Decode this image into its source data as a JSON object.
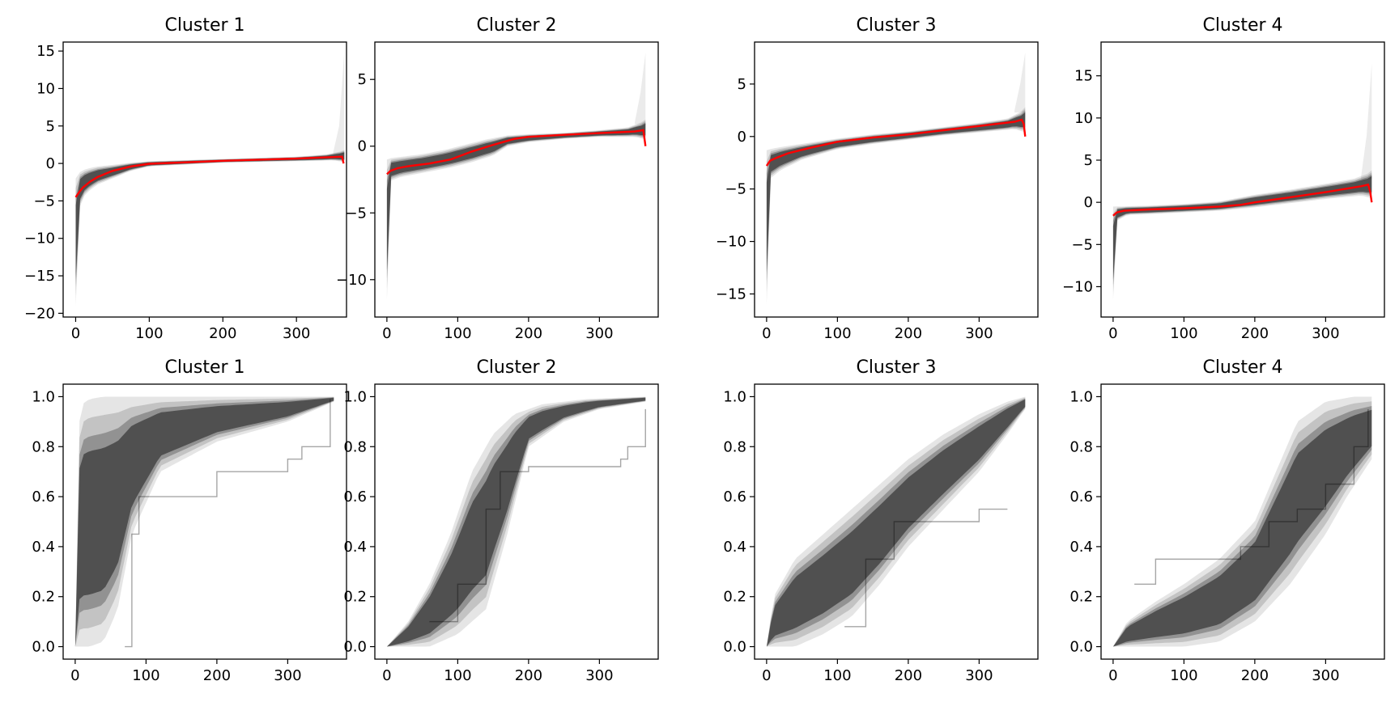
{
  "figure": {
    "colors": {
      "band": "#000000",
      "mean": "#ff0000",
      "axis": "#000000",
      "background": "#ffffff"
    }
  },
  "chart_data": [
    {
      "type": "line",
      "title": "Cluster 1",
      "xlabel": "",
      "ylabel": "",
      "xlim": [
        -17,
        368
      ],
      "ylim": [
        -20.5,
        16.2
      ],
      "xticks": [
        0,
        100,
        200,
        300
      ],
      "yticks": [
        -20,
        -15,
        -10,
        -5,
        0,
        5,
        10,
        15
      ],
      "ytick_labels": [
        "−20",
        "−15",
        "−10",
        "−5",
        "0",
        "5",
        10,
        15
      ],
      "grid": false,
      "series": [
        {
          "role": "mean",
          "color": "#ff0000",
          "x": [
            0,
            5,
            10,
            20,
            30,
            50,
            75,
            100,
            150,
            200,
            250,
            300,
            350,
            362,
            364
          ],
          "y": [
            -4.5,
            -3.8,
            -3.2,
            -2.4,
            -1.8,
            -1.0,
            -0.4,
            -0.05,
            0.15,
            0.35,
            0.5,
            0.65,
            0.85,
            0.9,
            0.0
          ]
        },
        {
          "role": "band-upper",
          "x": [
            0,
            5,
            10,
            20,
            30,
            50,
            75,
            100,
            200,
            300,
            340,
            360,
            365
          ],
          "y": [
            -2.0,
            -1.2,
            -0.9,
            -0.6,
            -0.4,
            -0.2,
            0.1,
            0.3,
            0.6,
            0.9,
            1.2,
            1.6,
            1.8
          ]
        },
        {
          "role": "band-lower",
          "x": [
            0,
            2,
            5,
            10,
            20,
            30,
            50,
            75,
            100,
            200,
            300,
            350,
            365
          ],
          "y": [
            -19.0,
            -10.0,
            -6.0,
            -4.5,
            -3.5,
            -2.8,
            -2.0,
            -1.0,
            -0.4,
            0.1,
            0.3,
            0.4,
            0.2
          ]
        },
        {
          "role": "tail-upper",
          "x": [
            350,
            358,
            365
          ],
          "y": [
            1.5,
            5.0,
            15.0
          ]
        }
      ]
    },
    {
      "type": "line",
      "title": "Cluster 2",
      "xlabel": "",
      "ylabel": "",
      "xlim": [
        -17,
        383
      ],
      "ylim": [
        -12.8,
        7.8
      ],
      "xticks": [
        0,
        100,
        200,
        300
      ],
      "yticks": [
        -10,
        -5,
        0,
        5
      ],
      "ytick_labels": [
        "−10",
        "−5",
        "0",
        "5"
      ],
      "grid": false,
      "series": [
        {
          "role": "mean",
          "color": "#ff0000",
          "x": [
            0,
            5,
            15,
            30,
            60,
            90,
            120,
            150,
            180,
            200,
            250,
            300,
            350,
            362,
            365
          ],
          "y": [
            -2.1,
            -1.85,
            -1.65,
            -1.5,
            -1.3,
            -1.0,
            -0.4,
            0.1,
            0.55,
            0.7,
            0.85,
            0.98,
            1.1,
            1.2,
            0.0
          ]
        },
        {
          "role": "band-upper",
          "x": [
            0,
            5,
            20,
            50,
            80,
            110,
            140,
            170,
            200,
            250,
            300,
            340,
            360,
            365
          ],
          "y": [
            -1.0,
            -0.9,
            -0.8,
            -0.6,
            -0.3,
            0.1,
            0.5,
            0.8,
            0.9,
            1.0,
            1.2,
            1.4,
            1.8,
            2.0
          ]
        },
        {
          "role": "band-lower",
          "x": [
            0,
            2,
            5,
            20,
            50,
            90,
            120,
            150,
            170,
            200,
            250,
            300,
            350,
            365
          ],
          "y": [
            -11.5,
            -6.0,
            -2.6,
            -2.3,
            -2.0,
            -1.6,
            -1.2,
            -0.7,
            0.0,
            0.3,
            0.55,
            0.7,
            0.7,
            0.5
          ]
        },
        {
          "role": "tail-upper",
          "x": [
            350,
            358,
            365
          ],
          "y": [
            1.8,
            4.0,
            7.0
          ]
        }
      ]
    },
    {
      "type": "line",
      "title": "Cluster 3",
      "xlabel": "",
      "ylabel": "",
      "xlim": [
        -17,
        383
      ],
      "ylim": [
        -17.2,
        9.0
      ],
      "xticks": [
        0,
        100,
        200,
        300
      ],
      "yticks": [
        -15,
        -10,
        -5,
        0,
        5
      ],
      "ytick_labels": [
        "−15",
        "−10",
        "−5",
        "0",
        "5"
      ],
      "grid": false,
      "series": [
        {
          "role": "mean",
          "color": "#ff0000",
          "x": [
            0,
            5,
            15,
            30,
            60,
            100,
            150,
            200,
            250,
            300,
            350,
            360,
            363,
            365
          ],
          "y": [
            -2.8,
            -2.3,
            -2.0,
            -1.6,
            -1.1,
            -0.5,
            -0.1,
            0.2,
            0.6,
            1.0,
            1.4,
            1.6,
            1.2,
            0.0
          ]
        },
        {
          "role": "band-upper",
          "x": [
            0,
            5,
            20,
            50,
            100,
            150,
            200,
            250,
            300,
            340,
            360,
            365
          ],
          "y": [
            -1.3,
            -1.2,
            -1.0,
            -0.7,
            -0.2,
            0.2,
            0.5,
            0.9,
            1.3,
            1.7,
            2.4,
            2.8
          ]
        },
        {
          "role": "band-lower",
          "x": [
            0,
            2,
            5,
            20,
            50,
            100,
            150,
            200,
            250,
            300,
            350,
            365
          ],
          "y": [
            -16.0,
            -8.0,
            -4.0,
            -3.2,
            -2.2,
            -1.2,
            -0.7,
            -0.3,
            0.1,
            0.4,
            0.7,
            0.4
          ]
        },
        {
          "role": "tail-upper",
          "x": [
            350,
            358,
            365
          ],
          "y": [
            2.5,
            5.0,
            8.0
          ]
        }
      ]
    },
    {
      "type": "line",
      "title": "Cluster 4",
      "xlabel": "",
      "ylabel": "",
      "xlim": [
        -17,
        383
      ],
      "ylim": [
        -13.6,
        19.0
      ],
      "xticks": [
        0,
        100,
        200,
        300
      ],
      "yticks": [
        -10,
        -5,
        0,
        5,
        10,
        15
      ],
      "ytick_labels": [
        "−10",
        "−5",
        "0",
        "5",
        "10",
        "15"
      ],
      "grid": false,
      "series": [
        {
          "role": "mean",
          "color": "#ff0000",
          "x": [
            0,
            5,
            15,
            50,
            100,
            150,
            180,
            200,
            250,
            300,
            350,
            360,
            363,
            365
          ],
          "y": [
            -1.6,
            -1.2,
            -1.0,
            -0.85,
            -0.7,
            -0.5,
            -0.3,
            0.0,
            0.6,
            1.2,
            1.9,
            2.1,
            1.2,
            0.0
          ]
        },
        {
          "role": "band-upper",
          "x": [
            0,
            5,
            50,
            100,
            150,
            200,
            250,
            300,
            340,
            360,
            365
          ],
          "y": [
            -0.5,
            -0.5,
            -0.4,
            -0.2,
            0.1,
            0.9,
            1.5,
            2.2,
            2.8,
            3.4,
            3.8
          ]
        },
        {
          "role": "band-lower",
          "x": [
            0,
            2,
            5,
            20,
            50,
            100,
            150,
            200,
            250,
            300,
            350,
            365
          ],
          "y": [
            -11.5,
            -5.0,
            -2.2,
            -1.5,
            -1.4,
            -1.2,
            -1.0,
            -0.6,
            -0.1,
            0.4,
            0.8,
            0.5
          ]
        },
        {
          "role": "tail-upper",
          "x": [
            350,
            358,
            365
          ],
          "y": [
            3.0,
            8.0,
            16.5
          ]
        }
      ]
    },
    {
      "type": "line",
      "title": "Cluster 1",
      "xlabel": "",
      "ylabel": "",
      "xlim": [
        -17,
        383
      ],
      "ylim": [
        -0.05,
        1.05
      ],
      "xticks": [
        0,
        100,
        200,
        300
      ],
      "yticks": [
        0.0,
        0.2,
        0.4,
        0.6,
        0.8,
        1.0
      ],
      "ytick_labels": [
        "0.0",
        "0.2",
        "0.4",
        "0.6",
        "0.8",
        "1.0"
      ],
      "grid": false,
      "series": [
        {
          "role": "band-upper",
          "x": [
            0,
            3,
            10,
            20,
            40,
            80,
            150,
            250,
            365
          ],
          "y": [
            0.0,
            0.85,
            0.97,
            0.99,
            1.0,
            1.0,
            1.0,
            1.0,
            1.0
          ]
        },
        {
          "role": "band-lower",
          "x": [
            0,
            20,
            40,
            60,
            80,
            120,
            200,
            300,
            365
          ],
          "y": [
            0.0,
            0.0,
            0.02,
            0.15,
            0.45,
            0.7,
            0.82,
            0.9,
            0.98
          ]
        },
        {
          "role": "trace",
          "x": [
            70,
            80,
            90,
            200,
            300,
            320,
            360
          ],
          "y": [
            0.0,
            0.45,
            0.6,
            0.7,
            0.75,
            0.8,
            0.99
          ]
        }
      ]
    },
    {
      "type": "line",
      "title": "Cluster 2",
      "xlabel": "",
      "ylabel": "",
      "xlim": [
        -17,
        383
      ],
      "ylim": [
        -0.05,
        1.05
      ],
      "xticks": [
        0,
        100,
        200,
        300
      ],
      "yticks": [
        0.0,
        0.2,
        0.4,
        0.6,
        0.8,
        1.0
      ],
      "ytick_labels": [
        "0.0",
        "0.2",
        "0.4",
        "0.6",
        "0.8",
        "1.0"
      ],
      "grid": false,
      "series": [
        {
          "role": "band-upper",
          "x": [
            0,
            30,
            60,
            90,
            120,
            150,
            180,
            220,
            280,
            365
          ],
          "y": [
            0.0,
            0.1,
            0.25,
            0.45,
            0.7,
            0.85,
            0.93,
            0.97,
            0.99,
            1.0
          ]
        },
        {
          "role": "band-lower",
          "x": [
            0,
            60,
            100,
            140,
            170,
            200,
            250,
            300,
            365
          ],
          "y": [
            0.0,
            0.0,
            0.05,
            0.15,
            0.45,
            0.8,
            0.9,
            0.95,
            0.98
          ]
        },
        {
          "role": "trace",
          "x": [
            60,
            100,
            140,
            160,
            200,
            280,
            330,
            340,
            365
          ],
          "y": [
            0.1,
            0.25,
            0.55,
            0.7,
            0.72,
            0.72,
            0.75,
            0.8,
            0.95
          ]
        }
      ]
    },
    {
      "type": "line",
      "title": "Cluster 3",
      "xlabel": "",
      "ylabel": "",
      "xlim": [
        -17,
        383
      ],
      "ylim": [
        -0.05,
        1.05
      ],
      "xticks": [
        0,
        100,
        200,
        300
      ],
      "yticks": [
        0.0,
        0.2,
        0.4,
        0.6,
        0.8,
        1.0
      ],
      "ytick_labels": [
        "0.0",
        "0.2",
        "0.4",
        "0.6",
        "0.8",
        "1.0"
      ],
      "grid": false,
      "series": [
        {
          "role": "band-upper",
          "x": [
            0,
            10,
            40,
            80,
            120,
            160,
            200,
            250,
            300,
            340,
            365
          ],
          "y": [
            0.0,
            0.2,
            0.35,
            0.45,
            0.55,
            0.65,
            0.75,
            0.85,
            0.93,
            0.98,
            1.0
          ]
        },
        {
          "role": "band-lower",
          "x": [
            0,
            40,
            80,
            120,
            160,
            200,
            250,
            300,
            340,
            365
          ],
          "y": [
            0.0,
            0.0,
            0.05,
            0.12,
            0.25,
            0.4,
            0.55,
            0.7,
            0.85,
            0.95
          ]
        },
        {
          "role": "trace",
          "x": [
            110,
            140,
            180,
            220,
            270,
            300,
            340
          ],
          "y": [
            0.08,
            0.35,
            0.5,
            0.5,
            0.5,
            0.55,
            0.55
          ]
        }
      ]
    },
    {
      "type": "line",
      "title": "Cluster 4",
      "xlabel": "",
      "ylabel": "",
      "xlim": [
        -17,
        383
      ],
      "ylim": [
        -0.05,
        1.05
      ],
      "xticks": [
        0,
        100,
        200,
        300
      ],
      "yticks": [
        0.0,
        0.2,
        0.4,
        0.6,
        0.8,
        1.0
      ],
      "ytick_labels": [
        "0.0",
        "0.2",
        "0.4",
        "0.6",
        "0.8",
        "1.0"
      ],
      "grid": false,
      "series": [
        {
          "role": "band-upper",
          "x": [
            0,
            20,
            60,
            100,
            150,
            200,
            230,
            260,
            300,
            340,
            365
          ],
          "y": [
            0.0,
            0.1,
            0.18,
            0.25,
            0.35,
            0.5,
            0.7,
            0.9,
            0.98,
            1.0,
            1.0
          ]
        },
        {
          "role": "band-lower",
          "x": [
            0,
            100,
            150,
            200,
            250,
            300,
            330,
            365
          ],
          "y": [
            0.0,
            0.0,
            0.02,
            0.1,
            0.25,
            0.45,
            0.6,
            0.75
          ]
        },
        {
          "role": "trace",
          "x": [
            30,
            60,
            120,
            180,
            220,
            260,
            300,
            340,
            360
          ],
          "y": [
            0.25,
            0.35,
            0.35,
            0.4,
            0.5,
            0.55,
            0.65,
            0.8,
            0.95
          ]
        }
      ]
    }
  ]
}
